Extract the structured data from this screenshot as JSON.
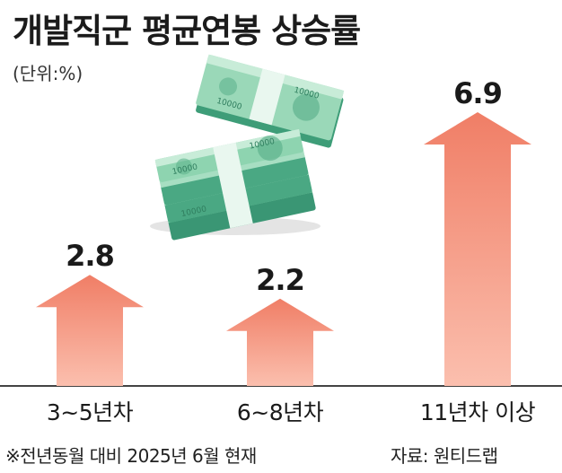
{
  "header": {
    "title": "개발직군 평균연봉 상승률",
    "unit": "(단위:%)"
  },
  "chart_data": {
    "type": "bar",
    "categories": [
      "3~5년차",
      "6~8년차",
      "11년차 이상"
    ],
    "values": [
      2.8,
      2.2,
      6.9
    ],
    "title": "개발직군 평균연봉 상승률",
    "xlabel": "",
    "ylabel": "",
    "unit": "(단위:%)",
    "grid": false,
    "legend": "none",
    "bar_color": "#f4937a",
    "bar_color_top": "#f07e66",
    "bar_color_bottom": "#fbbfae"
  },
  "footer": {
    "note": "※전년동월 대비 2025년 6월 현재",
    "source": "자료: 원티드랩"
  },
  "illustration": {
    "name": "money-stacks-icon",
    "banknote_label": "10000"
  }
}
